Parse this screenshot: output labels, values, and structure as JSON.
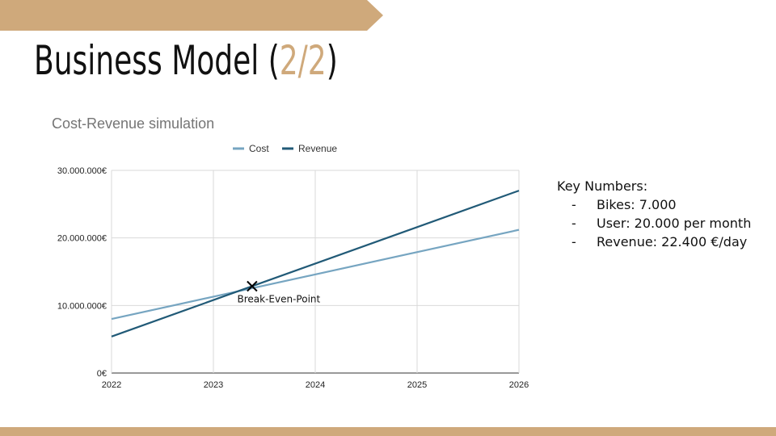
{
  "theme": {
    "accent": "#cfa97b",
    "cost_color": "#76a5c1",
    "revenue_color": "#215a77",
    "grid": "#d9d9d9"
  },
  "slide": {
    "title_prefix": "Business Model (",
    "title_highlight": "2/2",
    "title_suffix": ")"
  },
  "key_numbers": {
    "heading": "Key Numbers:",
    "items": [
      "Bikes: 7.000",
      "User: 20.000 per month",
      "Revenue: 22.400 €/day"
    ]
  },
  "chart_data": {
    "type": "line",
    "title": "Cost-Revenue simulation",
    "xlabel": "",
    "ylabel": "",
    "x": [
      2022,
      2026
    ],
    "x_ticks": [
      "2022",
      "2023",
      "2024",
      "2025",
      "2026"
    ],
    "y_ticks": [
      "0€",
      "10.000.000€",
      "20.000.000€",
      "30.000.000€"
    ],
    "ylim": [
      0,
      30000000
    ],
    "xlim": [
      2022,
      2026
    ],
    "legend_position": "top-center",
    "grid": true,
    "series": [
      {
        "name": "Cost",
        "x": [
          2022,
          2026
        ],
        "values": [
          8000000,
          21200000
        ]
      },
      {
        "name": "Revenue",
        "x": [
          2022,
          2026
        ],
        "values": [
          5400000,
          27000000
        ]
      }
    ],
    "annotation": {
      "label": "Break-Even-Point",
      "x": 2023.38,
      "y": 12850000
    }
  }
}
